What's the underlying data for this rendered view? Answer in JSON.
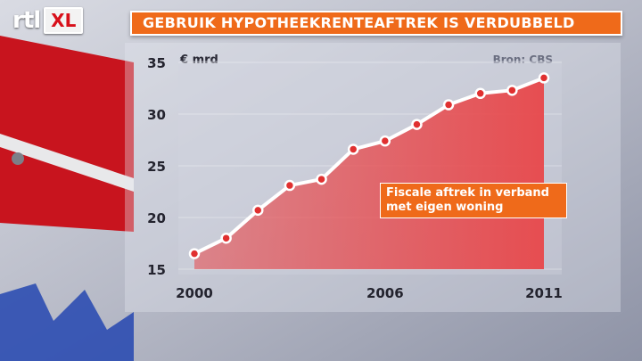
{
  "logo": {
    "channel": "rtl",
    "badge": "XL"
  },
  "title": "GEBRUIK HYPOTHEEKRENTEAFTREK IS VERDUBBELD",
  "source": "Bron: CBS",
  "annotation": "Fiscale aftrek in verband met eigen woning",
  "colors": {
    "accent": "#ef6a1a",
    "area": "#e8474a",
    "line": "#ffffff",
    "marker": "#e03030"
  },
  "chart_data": {
    "type": "area",
    "title": "GEBRUIK HYPOTHEEKRENTEAFTREK IS VERDUBBELD",
    "ylabel": "€ mrd",
    "xlabel": "",
    "x": [
      2000,
      2001,
      2002,
      2003,
      2004,
      2005,
      2006,
      2007,
      2008,
      2009,
      2010,
      2011
    ],
    "series": [
      {
        "values": [
          16.5,
          18.0,
          20.7,
          23.1,
          23.7,
          26.6,
          27.4,
          29.0,
          30.9,
          32.0,
          32.3,
          33.5
        ]
      }
    ],
    "xticks": [
      "2000",
      "2006",
      "2011"
    ],
    "yticks": [
      "35",
      "30",
      "25",
      "20",
      "15"
    ],
    "ylim": [
      15,
      35
    ],
    "grid": true,
    "legend": "none"
  }
}
